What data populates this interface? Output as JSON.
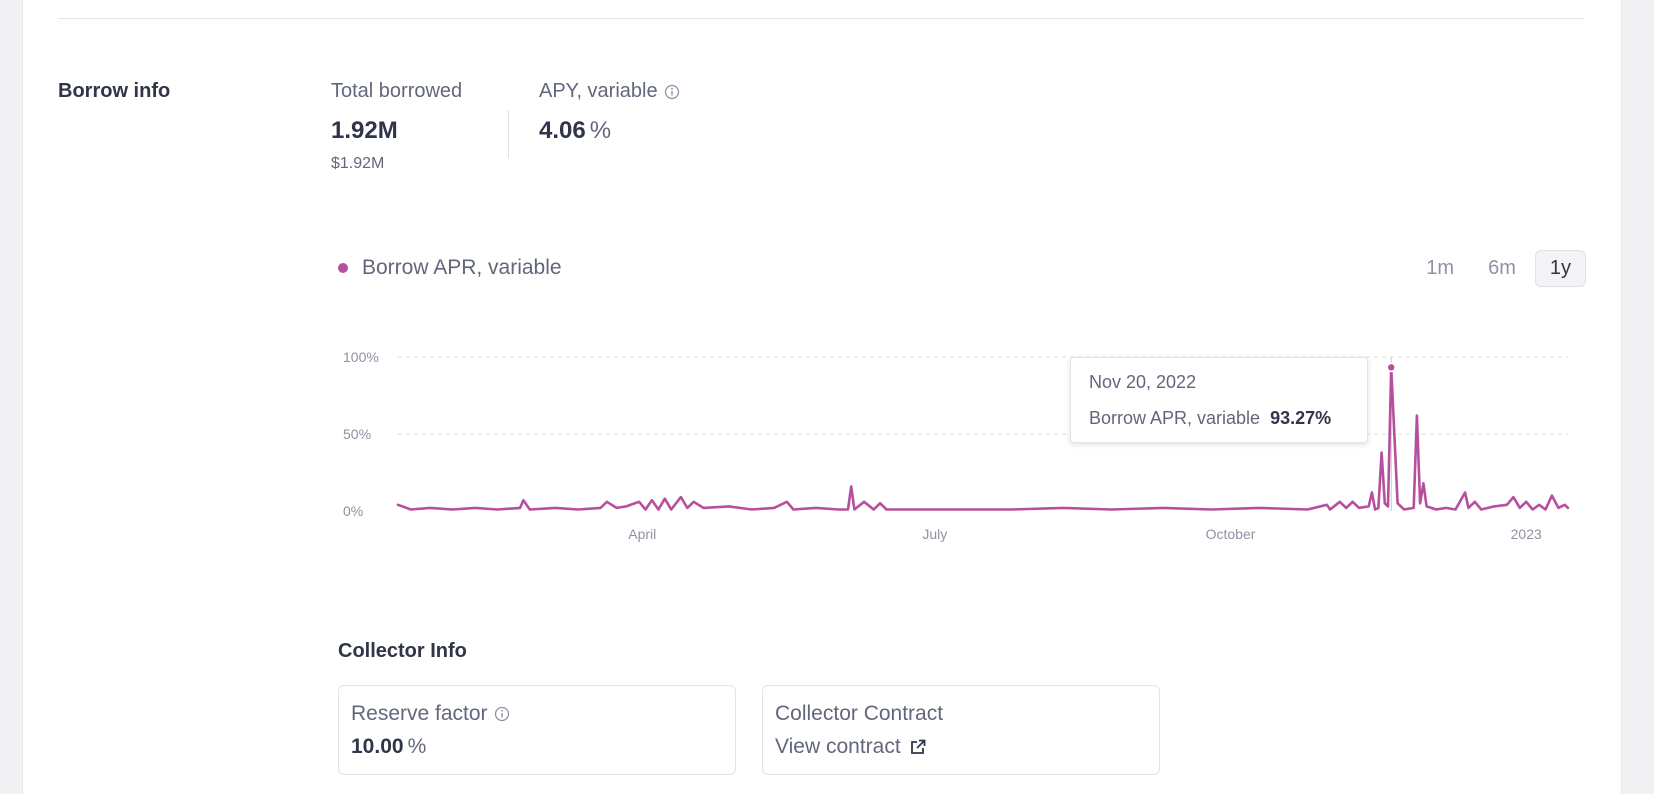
{
  "borrow_info": {
    "section_title": "Borrow info",
    "total_borrowed": {
      "label": "Total borrowed",
      "value": "1.92M",
      "usd_prefix": "$",
      "usd_value": "1.92M"
    },
    "apy": {
      "label": "APY, variable",
      "value": "4.06",
      "unit": "%"
    }
  },
  "chart_controls": {
    "legend_label": "Borrow APR, variable",
    "legend_color": "#b6509e",
    "ranges": [
      {
        "label": "1m",
        "active": false
      },
      {
        "label": "6m",
        "active": false
      },
      {
        "label": "1y",
        "active": true
      }
    ]
  },
  "tooltip": {
    "date": "Nov 20, 2022",
    "series": "Borrow APR, variable",
    "value": "93.27%"
  },
  "chart_data": {
    "type": "line",
    "series": [
      {
        "name": "Borrow APR, variable",
        "color": "#b6509e",
        "points": [
          [
            "2022-01-15",
            4
          ],
          [
            "2022-01-19",
            1
          ],
          [
            "2022-01-25",
            2
          ],
          [
            "2022-02-01",
            1
          ],
          [
            "2022-02-08",
            2
          ],
          [
            "2022-02-15",
            1
          ],
          [
            "2022-02-22",
            2
          ],
          [
            "2022-02-23",
            7
          ],
          [
            "2022-02-25",
            1
          ],
          [
            "2022-03-05",
            2
          ],
          [
            "2022-03-12",
            1
          ],
          [
            "2022-03-19",
            2
          ],
          [
            "2022-03-21",
            6
          ],
          [
            "2022-03-24",
            2
          ],
          [
            "2022-03-27",
            3
          ],
          [
            "2022-03-31",
            6
          ],
          [
            "2022-04-02",
            1
          ],
          [
            "2022-04-04",
            7
          ],
          [
            "2022-04-06",
            1
          ],
          [
            "2022-04-08",
            8
          ],
          [
            "2022-04-10",
            1
          ],
          [
            "2022-04-13",
            9
          ],
          [
            "2022-04-15",
            2
          ],
          [
            "2022-04-17",
            6
          ],
          [
            "2022-04-20",
            2
          ],
          [
            "2022-04-28",
            3
          ],
          [
            "2022-05-05",
            1
          ],
          [
            "2022-05-12",
            2
          ],
          [
            "2022-05-16",
            6
          ],
          [
            "2022-05-18",
            1
          ],
          [
            "2022-05-25",
            2
          ],
          [
            "2022-06-01",
            1
          ],
          [
            "2022-06-04",
            1
          ],
          [
            "2022-06-05",
            16
          ],
          [
            "2022-06-06",
            1
          ],
          [
            "2022-06-09",
            6
          ],
          [
            "2022-06-12",
            1
          ],
          [
            "2022-06-14",
            5
          ],
          [
            "2022-06-16",
            1
          ],
          [
            "2022-06-25",
            1
          ],
          [
            "2022-07-10",
            1
          ],
          [
            "2022-07-25",
            1
          ],
          [
            "2022-08-10",
            2
          ],
          [
            "2022-08-25",
            1
          ],
          [
            "2022-09-10",
            2
          ],
          [
            "2022-09-25",
            1
          ],
          [
            "2022-10-10",
            2
          ],
          [
            "2022-10-25",
            1
          ],
          [
            "2022-10-31",
            4
          ],
          [
            "2022-11-01",
            1
          ],
          [
            "2022-11-04",
            6
          ],
          [
            "2022-11-06",
            2
          ],
          [
            "2022-11-08",
            6
          ],
          [
            "2022-11-10",
            2
          ],
          [
            "2022-11-13",
            3
          ],
          [
            "2022-11-14",
            12
          ],
          [
            "2022-11-15",
            1
          ],
          [
            "2022-11-16",
            2
          ],
          [
            "2022-11-17",
            38
          ],
          [
            "2022-11-18",
            5
          ],
          [
            "2022-11-19",
            3
          ],
          [
            "2022-11-20",
            93.27
          ],
          [
            "2022-11-22",
            5
          ],
          [
            "2022-11-24",
            1
          ],
          [
            "2022-11-27",
            2
          ],
          [
            "2022-11-28",
            62
          ],
          [
            "2022-11-29",
            5
          ],
          [
            "2022-11-30",
            18
          ],
          [
            "2022-12-01",
            3
          ],
          [
            "2022-12-04",
            1
          ],
          [
            "2022-12-07",
            2
          ],
          [
            "2022-12-10",
            1
          ],
          [
            "2022-12-13",
            12
          ],
          [
            "2022-12-14",
            2
          ],
          [
            "2022-12-16",
            6
          ],
          [
            "2022-12-18",
            1
          ],
          [
            "2022-12-22",
            3
          ],
          [
            "2022-12-26",
            4
          ],
          [
            "2022-12-28",
            9
          ],
          [
            "2022-12-30",
            2
          ],
          [
            "2023-01-01",
            6
          ],
          [
            "2023-01-03",
            1
          ],
          [
            "2023-01-05",
            4
          ],
          [
            "2023-01-07",
            1
          ],
          [
            "2023-01-09",
            10
          ],
          [
            "2023-01-11",
            2
          ],
          [
            "2023-01-13",
            4
          ],
          [
            "2023-01-14",
            2
          ]
        ]
      }
    ],
    "y_ticks": [
      0,
      50,
      100
    ],
    "y_tick_labels": [
      "0%",
      "50%",
      "100%"
    ],
    "ylim": [
      0,
      100
    ],
    "x_range": [
      "2022-01-15",
      "2023-01-14"
    ],
    "x_ticks": [
      {
        "label": "April",
        "date": "2022-04-01"
      },
      {
        "label": "July",
        "date": "2022-07-01"
      },
      {
        "label": "October",
        "date": "2022-10-01"
      },
      {
        "label": "2023",
        "date": "2023-01-01"
      }
    ],
    "highlight_date": "2022-11-20",
    "grid": true
  },
  "collector_info": {
    "title": "Collector Info",
    "reserve_factor": {
      "label": "Reserve factor",
      "value": "10.00",
      "unit": "%"
    },
    "contract": {
      "label": "Collector Contract",
      "link_text": "View contract"
    }
  }
}
